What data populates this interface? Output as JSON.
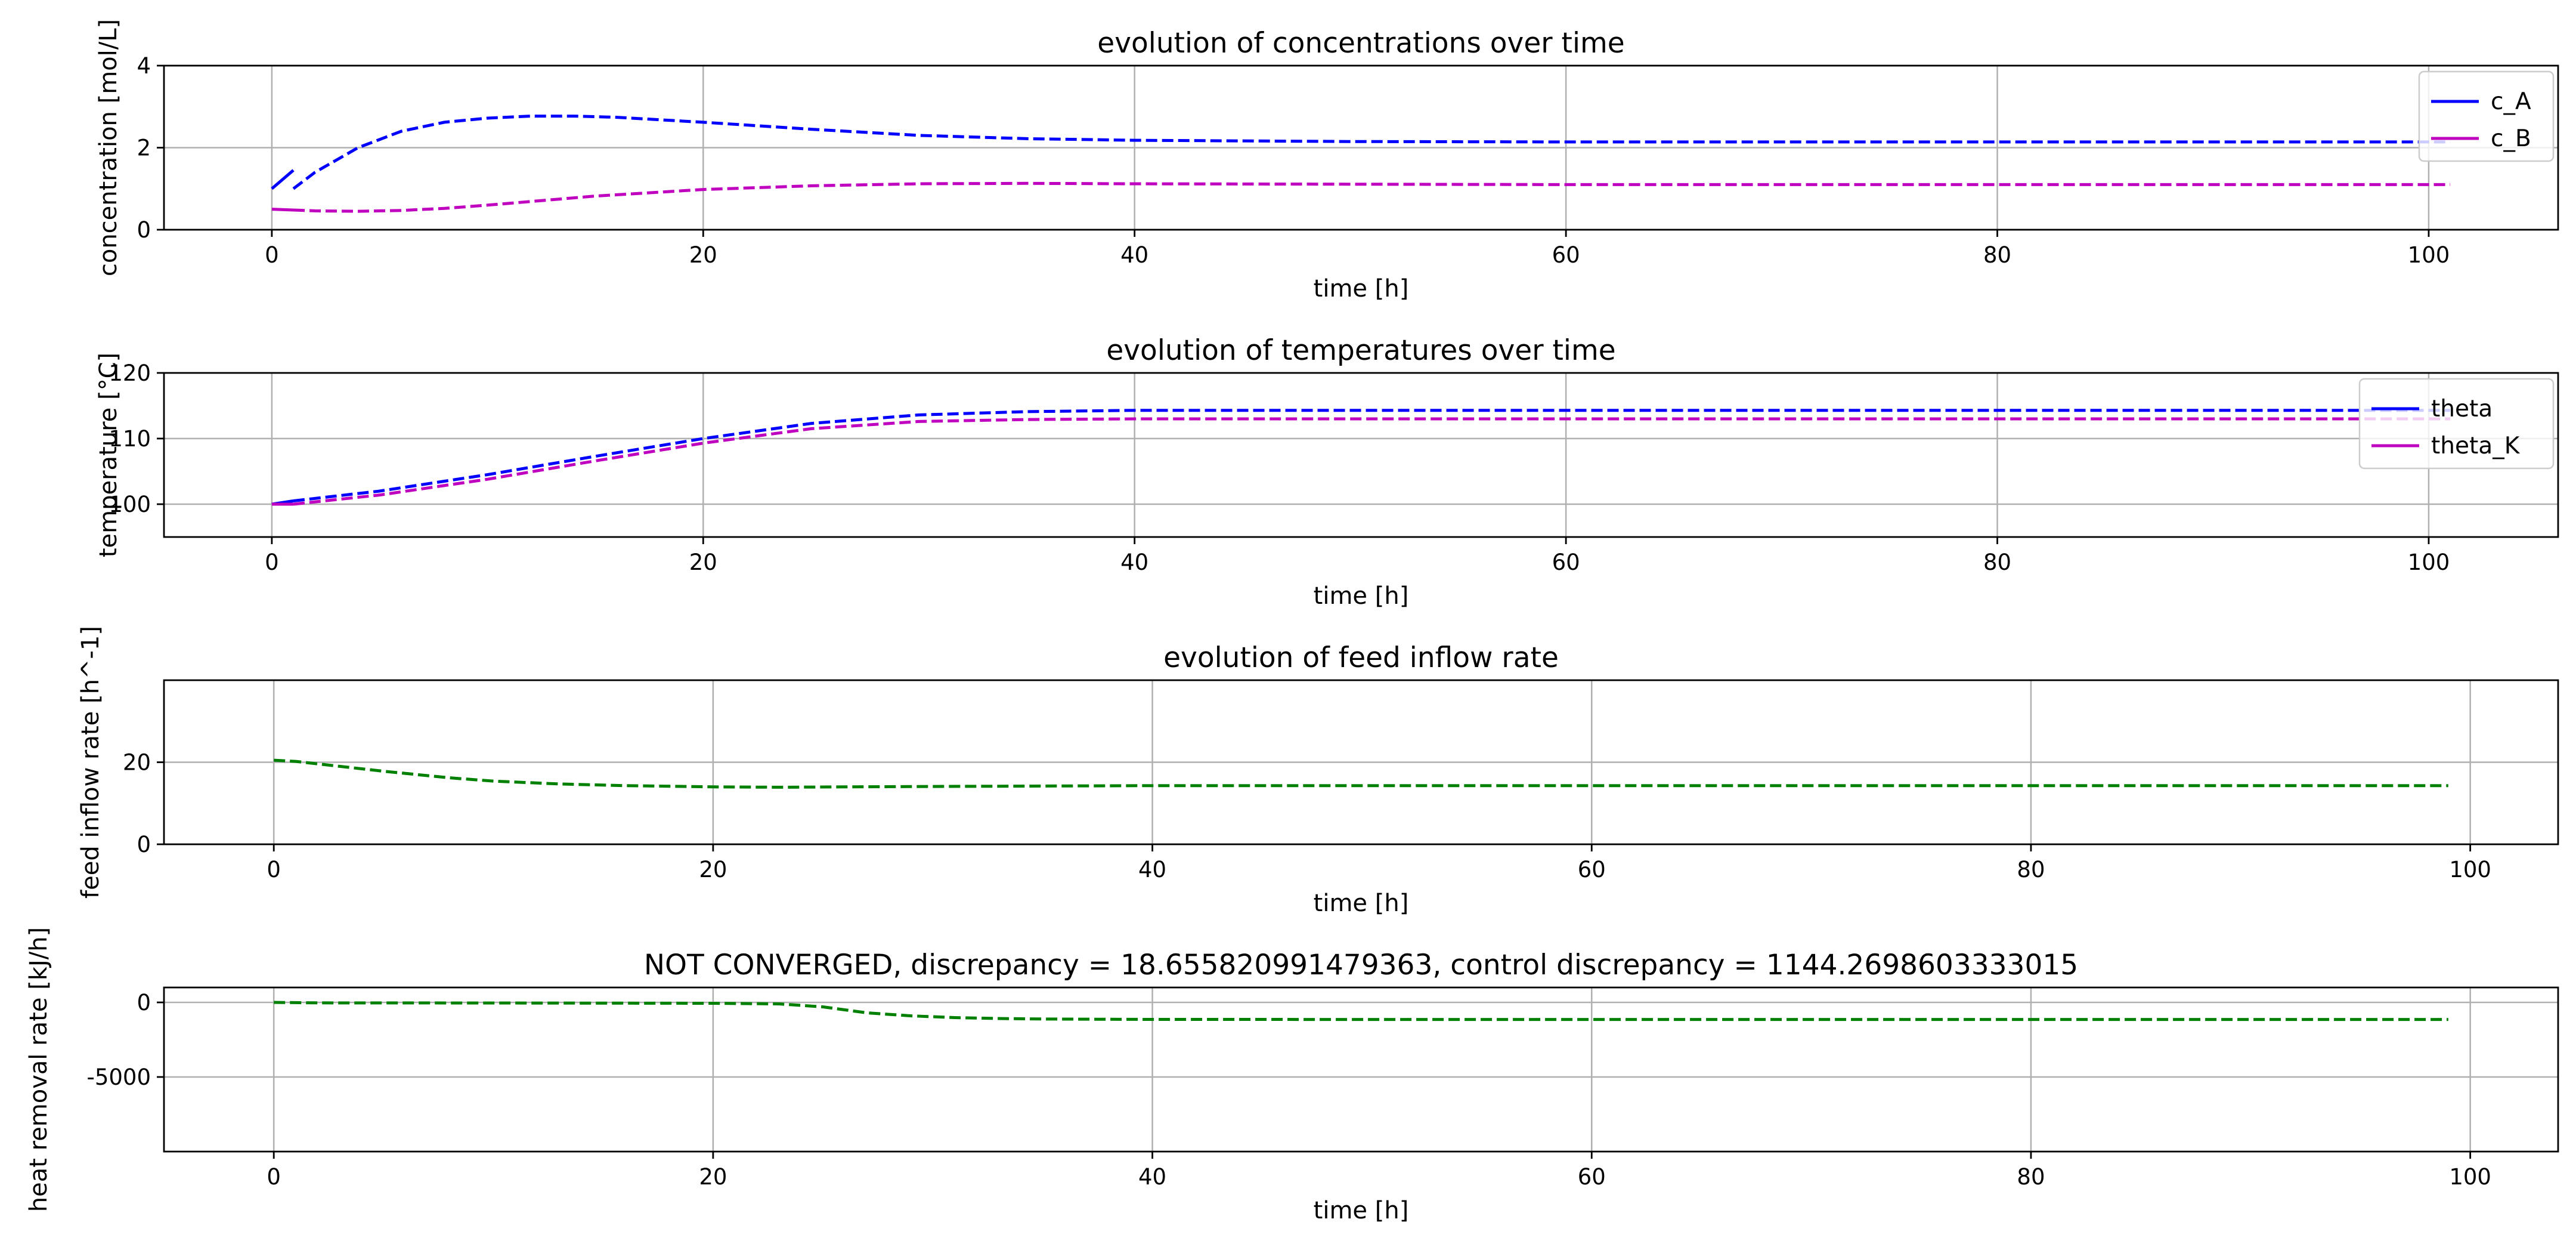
{
  "colors": {
    "blue": "#0000ff",
    "magenta": "#bf00bf",
    "green": "#008000",
    "grid": "#b0b0b0"
  },
  "chart_data": [
    {
      "type": "line",
      "title": "evolution of concentrations over time",
      "xlabel": "time [h]",
      "ylabel": "concentration [mol/L]",
      "xlim": [
        -5,
        106
      ],
      "ylim": [
        0,
        4
      ],
      "xticks": [
        0,
        20,
        40,
        60,
        80,
        100
      ],
      "yticks": [
        0,
        2,
        4
      ],
      "grid": true,
      "legend": "top-right",
      "series": [
        {
          "name": "c_A",
          "color": "#0000ff",
          "solid_x": [
            0,
            1
          ],
          "solid_y": [
            1.0,
            1.45
          ],
          "x": [
            1,
            2,
            4,
            6,
            8,
            10,
            12,
            14,
            16,
            20,
            25,
            30,
            35,
            40,
            50,
            60,
            70,
            80,
            90,
            101
          ],
          "y": [
            1.0,
            1.4,
            2.0,
            2.4,
            2.62,
            2.72,
            2.77,
            2.77,
            2.74,
            2.62,
            2.45,
            2.3,
            2.22,
            2.18,
            2.15,
            2.14,
            2.14,
            2.14,
            2.14,
            2.14
          ]
        },
        {
          "name": "c_B",
          "color": "#bf00bf",
          "solid_x": [
            0,
            1
          ],
          "solid_y": [
            0.5,
            0.48
          ],
          "x": [
            1,
            2,
            4,
            6,
            8,
            10,
            15,
            20,
            25,
            30,
            35,
            40,
            50,
            60,
            70,
            80,
            90,
            101
          ],
          "y": [
            0.48,
            0.46,
            0.45,
            0.47,
            0.52,
            0.6,
            0.82,
            0.98,
            1.07,
            1.12,
            1.13,
            1.12,
            1.11,
            1.1,
            1.1,
            1.1,
            1.1,
            1.1
          ]
        }
      ]
    },
    {
      "type": "line",
      "title": "evolution of temperatures over time",
      "xlabel": "time [h]",
      "ylabel": "temperature [°C]",
      "xlim": [
        -5,
        106
      ],
      "ylim": [
        95,
        120
      ],
      "xticks": [
        0,
        20,
        40,
        60,
        80,
        100
      ],
      "yticks": [
        100,
        110,
        120
      ],
      "grid": true,
      "legend": "top-right",
      "series": [
        {
          "name": "theta",
          "color": "#0000ff",
          "solid_x": [
            0,
            1
          ],
          "solid_y": [
            100,
            100.5
          ],
          "x": [
            1,
            5,
            10,
            15,
            20,
            25,
            30,
            35,
            40,
            50,
            60,
            70,
            80,
            90,
            101
          ],
          "y": [
            100.5,
            102.0,
            104.5,
            107.3,
            110.0,
            112.3,
            113.6,
            114.1,
            114.3,
            114.3,
            114.3,
            114.3,
            114.3,
            114.3,
            114.3
          ]
        },
        {
          "name": "theta_K",
          "color": "#bf00bf",
          "solid_x": [
            0,
            1
          ],
          "solid_y": [
            100,
            100
          ],
          "x": [
            1,
            5,
            10,
            15,
            20,
            25,
            30,
            35,
            40,
            50,
            60,
            70,
            80,
            90,
            101
          ],
          "y": [
            100,
            101.4,
            103.8,
            106.6,
            109.3,
            111.5,
            112.6,
            112.9,
            113.0,
            113.0,
            113.0,
            113.0,
            113.0,
            113.0,
            113.0
          ]
        }
      ]
    },
    {
      "type": "line",
      "title": "evolution of feed inflow rate",
      "xlabel": "time [h]",
      "ylabel": "feed inflow rate [h^-1]",
      "xlim": [
        -5,
        104
      ],
      "ylim": [
        0,
        40
      ],
      "xticks": [
        0,
        20,
        40,
        60,
        80,
        100
      ],
      "yticks": [
        0,
        20
      ],
      "grid": true,
      "series": [
        {
          "name": "",
          "color": "#008000",
          "x": [
            0,
            1,
            3,
            5,
            8,
            10,
            13,
            16,
            20,
            23,
            26,
            30,
            35,
            40,
            50,
            60,
            70,
            80,
            90,
            99
          ],
          "y": [
            20.5,
            20.2,
            19.0,
            17.8,
            16.2,
            15.4,
            14.7,
            14.3,
            14.0,
            13.9,
            14.0,
            14.1,
            14.2,
            14.3,
            14.3,
            14.3,
            14.3,
            14.3,
            14.3,
            14.3
          ]
        }
      ]
    },
    {
      "type": "line",
      "title": "NOT CONVERGED, discrepancy = 18.655820991479363, control discrepancy = 1144.2698603333015",
      "xlabel": "time [h]",
      "ylabel": "heat removal rate [kJ/h]",
      "xlim": [
        -5,
        104
      ],
      "ylim": [
        -10000,
        1000
      ],
      "xticks": [
        0,
        20,
        40,
        60,
        80,
        100
      ],
      "yticks": [
        0,
        -5000
      ],
      "grid": true,
      "series": [
        {
          "name": "",
          "color": "#008000",
          "x": [
            0,
            2,
            10,
            20,
            23,
            25,
            27,
            29,
            31,
            33,
            35,
            38,
            40,
            50,
            60,
            70,
            80,
            90,
            99
          ],
          "y": [
            0,
            -30,
            -40,
            -60,
            -100,
            -300,
            -700,
            -900,
            -1020,
            -1080,
            -1110,
            -1130,
            -1140,
            -1144,
            -1144,
            -1144,
            -1144,
            -1144,
            -1144
          ]
        }
      ]
    }
  ]
}
